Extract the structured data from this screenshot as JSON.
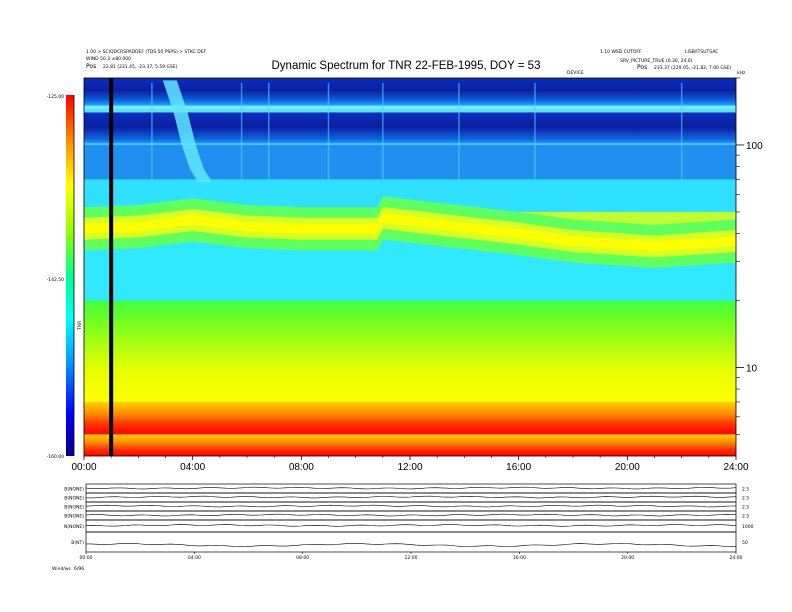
{
  "header": {
    "left_line1": "1.00 > SCIQDCRSPADDEF (TDS 50 PSPS) > STKC DEF",
    "left_line2": "WIND 50.3 ±80.000",
    "left_line3_label": "Pos",
    "left_line3_value": "22.81 (231.45, -23.37, 5.59 GSE)",
    "right_line1_a": "1.10 WSD CUTOFF",
    "right_line1_b": "LISB/ITSUTSAC",
    "right_line2": "SRV_PICTURE_TRUE (0.30, 24.0)",
    "right_line3_label": "Pos",
    "right_line3_value": "233.37 (229.05, -21.82, 7.00 GSE)",
    "center_small": "DEVICE",
    "freq_unit": "kHz"
  },
  "chart_data": {
    "type": "heatmap",
    "title": "Dynamic Spectrum for TNR 22-FEB-1995, DOY = 53",
    "colorbar": {
      "label": "TNR",
      "ticks": [
        "-125.00",
        "-142.50",
        "-160.00"
      ],
      "range": [
        -160,
        -125
      ],
      "colors": [
        "#00008a",
        "#0000ff",
        "#0090ff",
        "#00ffff",
        "#00ff90",
        "#90ff00",
        "#ffff00",
        "#ff9000",
        "#ff0000"
      ]
    },
    "x_ticks": [
      "00:00",
      "04:00",
      "08:00",
      "12:00",
      "16:00",
      "20:00",
      "24:00"
    ],
    "x_range_hours": [
      0,
      24
    ],
    "y_axis": {
      "scale": "log",
      "unit": "kHz",
      "range": [
        4,
        200
      ],
      "tick_labels": [
        "100",
        "10"
      ],
      "tick_values": [
        100,
        10
      ]
    },
    "bands_kHz": [
      {
        "name": "deep blue",
        "low": 150,
        "high": 200,
        "color": "#1030c8"
      },
      {
        "name": "light cyan line",
        "low": 140,
        "high": 150,
        "color": "#60e0ff"
      },
      {
        "name": "dark blue",
        "low": 100,
        "high": 140,
        "color": "#0a28b0"
      },
      {
        "name": "blue transition",
        "low": 70,
        "high": 100,
        "color": "#2090f0"
      },
      {
        "name": "cyan",
        "low": 50,
        "high": 70,
        "color": "#30e0ff"
      },
      {
        "name": "green/yellow plasma line",
        "low": 38,
        "high": 50,
        "color": "#c0ff30"
      },
      {
        "name": "cyan lower",
        "low": 20,
        "high": 38,
        "color": "#30e8ff"
      },
      {
        "name": "green/yellow background",
        "low": 7,
        "high": 20,
        "color": "#a0ff20"
      },
      {
        "name": "orange",
        "low": 5,
        "high": 7,
        "color": "#ff9000"
      },
      {
        "name": "red",
        "low": 4,
        "high": 5,
        "color": "#ff1000"
      }
    ],
    "plasma_line_kHz": [
      {
        "t": 0,
        "f": 42
      },
      {
        "t": 2,
        "f": 43
      },
      {
        "t": 4,
        "f": 46
      },
      {
        "t": 6,
        "f": 43
      },
      {
        "t": 8,
        "f": 42
      },
      {
        "t": 10.8,
        "f": 42
      },
      {
        "t": 11,
        "f": 47
      },
      {
        "t": 13,
        "f": 44
      },
      {
        "t": 16,
        "f": 40
      },
      {
        "t": 18,
        "f": 37
      },
      {
        "t": 21,
        "f": 35
      },
      {
        "t": 24,
        "f": 37
      }
    ],
    "data_gap_hours": 1
  },
  "panels": {
    "rows": [
      {
        "label": "B(NONE)",
        "scale": "2.5"
      },
      {
        "label": "B(NONE)",
        "scale": "2.5"
      },
      {
        "label": "B(NONE)",
        "scale": "2.5"
      },
      {
        "label": "B(NONE)",
        "scale": "2.5"
      },
      {
        "label": "N(NONE)",
        "scale": "1000"
      },
      {
        "label": "B(NT)",
        "scale": "50"
      }
    ],
    "x_ticks": [
      "00:00",
      "04:00",
      "08:00",
      "12:00",
      "16:00",
      "20:00",
      "24:00"
    ]
  },
  "footer": {
    "left_a": "Wind/ws",
    "left_b": "6/96"
  }
}
